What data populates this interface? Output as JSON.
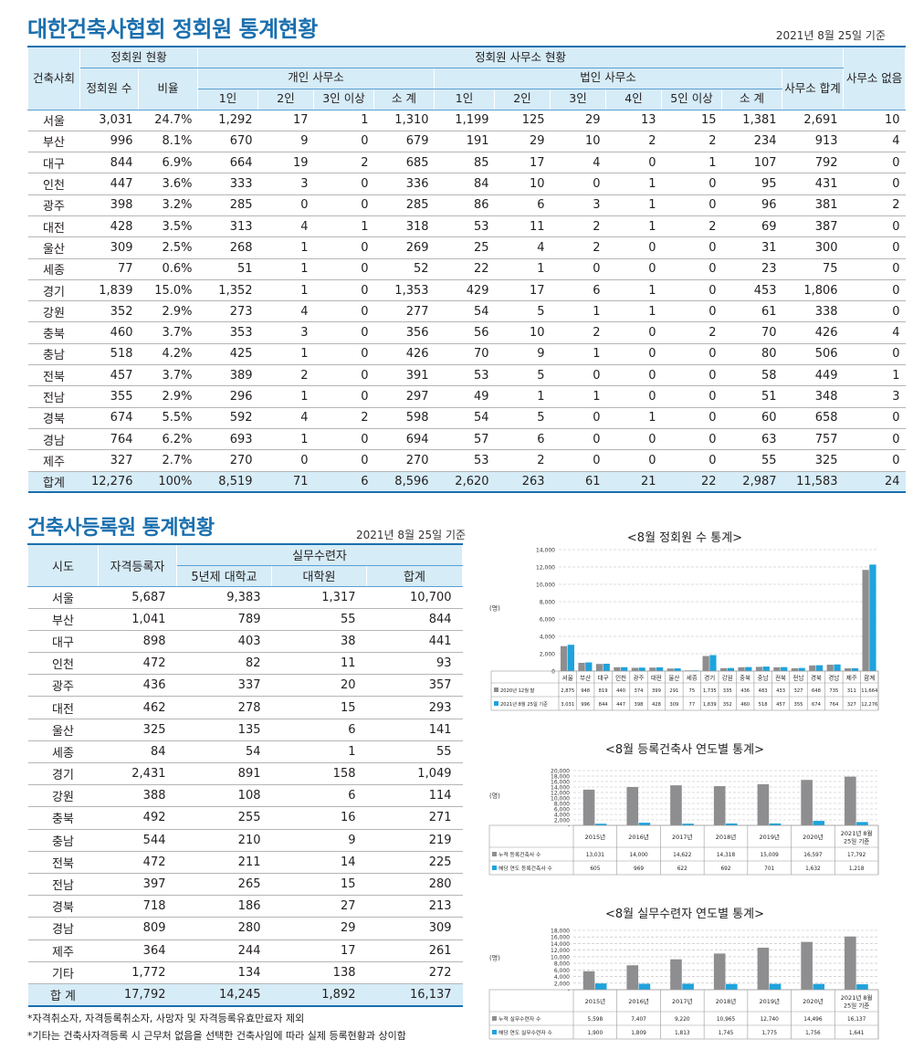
{
  "section1": {
    "title": "대한건축사협회 정회원 통계현황",
    "as_of": "2021년 8월 25일 기준",
    "headers": {
      "region": "건축사회",
      "member_status": "정회원 현황",
      "member_count": "정회원 수",
      "ratio": "비율",
      "office_status": "정회원 사무소 현황",
      "individual": "개인 사무소",
      "corporate": "법인 사무소",
      "one": "1인",
      "two": "2인",
      "three_plus": "3인 이상",
      "three": "3인",
      "four": "4인",
      "five_plus": "5인 이상",
      "subtotal": "소 계",
      "office_total": "사무소 합계",
      "no_office": "사무소 없음"
    },
    "rows": [
      [
        "서울",
        "3,031",
        "24.7%",
        "1,292",
        "17",
        "1",
        "1,310",
        "1,199",
        "125",
        "29",
        "13",
        "15",
        "1,381",
        "2,691",
        "10"
      ],
      [
        "부산",
        "996",
        "8.1%",
        "670",
        "9",
        "0",
        "679",
        "191",
        "29",
        "10",
        "2",
        "2",
        "234",
        "913",
        "4"
      ],
      [
        "대구",
        "844",
        "6.9%",
        "664",
        "19",
        "2",
        "685",
        "85",
        "17",
        "4",
        "0",
        "1",
        "107",
        "792",
        "0"
      ],
      [
        "인천",
        "447",
        "3.6%",
        "333",
        "3",
        "0",
        "336",
        "84",
        "10",
        "0",
        "1",
        "0",
        "95",
        "431",
        "0"
      ],
      [
        "광주",
        "398",
        "3.2%",
        "285",
        "0",
        "0",
        "285",
        "86",
        "6",
        "3",
        "1",
        "0",
        "96",
        "381",
        "2"
      ],
      [
        "대전",
        "428",
        "3.5%",
        "313",
        "4",
        "1",
        "318",
        "53",
        "11",
        "2",
        "1",
        "2",
        "69",
        "387",
        "0"
      ],
      [
        "울산",
        "309",
        "2.5%",
        "268",
        "1",
        "0",
        "269",
        "25",
        "4",
        "2",
        "0",
        "0",
        "31",
        "300",
        "0"
      ],
      [
        "세종",
        "77",
        "0.6%",
        "51",
        "1",
        "0",
        "52",
        "22",
        "1",
        "0",
        "0",
        "0",
        "23",
        "75",
        "0"
      ],
      [
        "경기",
        "1,839",
        "15.0%",
        "1,352",
        "1",
        "0",
        "1,353",
        "429",
        "17",
        "6",
        "1",
        "0",
        "453",
        "1,806",
        "0"
      ],
      [
        "강원",
        "352",
        "2.9%",
        "273",
        "4",
        "0",
        "277",
        "54",
        "5",
        "1",
        "1",
        "0",
        "61",
        "338",
        "0"
      ],
      [
        "충북",
        "460",
        "3.7%",
        "353",
        "3",
        "0",
        "356",
        "56",
        "10",
        "2",
        "0",
        "2",
        "70",
        "426",
        "4"
      ],
      [
        "충남",
        "518",
        "4.2%",
        "425",
        "1",
        "0",
        "426",
        "70",
        "9",
        "1",
        "0",
        "0",
        "80",
        "506",
        "0"
      ],
      [
        "전북",
        "457",
        "3.7%",
        "389",
        "2",
        "0",
        "391",
        "53",
        "5",
        "0",
        "0",
        "0",
        "58",
        "449",
        "1"
      ],
      [
        "전남",
        "355",
        "2.9%",
        "296",
        "1",
        "0",
        "297",
        "49",
        "1",
        "1",
        "0",
        "0",
        "51",
        "348",
        "3"
      ],
      [
        "경북",
        "674",
        "5.5%",
        "592",
        "4",
        "2",
        "598",
        "54",
        "5",
        "0",
        "1",
        "0",
        "60",
        "658",
        "0"
      ],
      [
        "경남",
        "764",
        "6.2%",
        "693",
        "1",
        "0",
        "694",
        "57",
        "6",
        "0",
        "0",
        "0",
        "63",
        "757",
        "0"
      ],
      [
        "제주",
        "327",
        "2.7%",
        "270",
        "0",
        "0",
        "270",
        "53",
        "2",
        "0",
        "0",
        "0",
        "55",
        "325",
        "0"
      ]
    ],
    "total": [
      "합계",
      "12,276",
      "100%",
      "8,519",
      "71",
      "6",
      "8,596",
      "2,620",
      "263",
      "61",
      "21",
      "22",
      "2,987",
      "11,583",
      "24"
    ]
  },
  "section2": {
    "title": "건축사등록원 통계현황",
    "as_of": "2021년 8월 25일 기준",
    "headers": {
      "region": "시도",
      "qualified": "자격등록자",
      "trainee": "실무수련자",
      "univ5": "5년제 대학교",
      "grad": "대학원",
      "sum": "합계"
    },
    "rows": [
      [
        "서울",
        "5,687",
        "9,383",
        "1,317",
        "10,700"
      ],
      [
        "부산",
        "1,041",
        "789",
        "55",
        "844"
      ],
      [
        "대구",
        "898",
        "403",
        "38",
        "441"
      ],
      [
        "인천",
        "472",
        "82",
        "11",
        "93"
      ],
      [
        "광주",
        "436",
        "337",
        "20",
        "357"
      ],
      [
        "대전",
        "462",
        "278",
        "15",
        "293"
      ],
      [
        "울산",
        "325",
        "135",
        "6",
        "141"
      ],
      [
        "세종",
        "84",
        "54",
        "1",
        "55"
      ],
      [
        "경기",
        "2,431",
        "891",
        "158",
        "1,049"
      ],
      [
        "강원",
        "388",
        "108",
        "6",
        "114"
      ],
      [
        "충북",
        "492",
        "255",
        "16",
        "271"
      ],
      [
        "충남",
        "544",
        "210",
        "9",
        "219"
      ],
      [
        "전북",
        "472",
        "211",
        "14",
        "225"
      ],
      [
        "전남",
        "397",
        "265",
        "15",
        "280"
      ],
      [
        "경북",
        "718",
        "186",
        "27",
        "213"
      ],
      [
        "경남",
        "809",
        "280",
        "29",
        "309"
      ],
      [
        "제주",
        "364",
        "244",
        "17",
        "261"
      ],
      [
        "기타",
        "1,772",
        "134",
        "138",
        "272"
      ]
    ],
    "total": [
      "합 계",
      "17,792",
      "14,245",
      "1,892",
      "16,137"
    ],
    "notes": [
      "*자격취소자, 자격등록취소자, 사망자 및 자격등록유효만료자 제외",
      "*기타는 건축사자격등록 시 근무처 없음을 선택한 건축사임에 따라 실제 등록현황과 상이함"
    ]
  },
  "colors": {
    "title": "#1a6fae",
    "header_bg": "#d6ecf7",
    "gray_bar": "#8e8e90",
    "blue_bar": "#1fa3dc"
  },
  "chart_data": [
    {
      "type": "bar",
      "title": "<8월 정회원 수 통계>",
      "ylabel": "(명)",
      "ylim": [
        0,
        14000
      ],
      "yticks": [
        "0",
        "2,000",
        "4,000",
        "6,000",
        "8,000",
        "10,000",
        "12,000",
        "14,000"
      ],
      "categories": [
        "서울",
        "부산",
        "대구",
        "인천",
        "광주",
        "대전",
        "울산",
        "세종",
        "경기",
        "강원",
        "충북",
        "충남",
        "전북",
        "전남",
        "경북",
        "경남",
        "제주",
        "합계"
      ],
      "series": [
        {
          "name": "2020년 12월 말",
          "values": [
            2875,
            948,
            819,
            440,
            374,
            399,
            291,
            75,
            1735,
            335,
            436,
            483,
            433,
            327,
            648,
            735,
            311,
            11664
          ],
          "labels": [
            "2,875",
            "948",
            "819",
            "440",
            "374",
            "399",
            "291",
            "75",
            "1,735",
            "335",
            "436",
            "483",
            "433",
            "327",
            "648",
            "735",
            "311",
            "11,664"
          ]
        },
        {
          "name": "2021년 8월 25일 기준",
          "values": [
            3031,
            996,
            844,
            447,
            398,
            428,
            309,
            77,
            1839,
            352,
            460,
            518,
            457,
            355,
            674,
            764,
            327,
            12276
          ],
          "labels": [
            "3,031",
            "996",
            "844",
            "447",
            "398",
            "428",
            "309",
            "77",
            "1,839",
            "352",
            "460",
            "518",
            "457",
            "355",
            "674",
            "764",
            "327",
            "12,276"
          ]
        }
      ]
    },
    {
      "type": "bar",
      "title": "<8월 등록건축사 연도별 통계>",
      "ylabel": "(명)",
      "ylim": [
        0,
        20000
      ],
      "yticks": [
        "-",
        "2,000",
        "4,000",
        "6,000",
        "8,000",
        "10,000",
        "12,000",
        "14,000",
        "16,000",
        "18,000",
        "20,000"
      ],
      "categories": [
        "2015년",
        "2016년",
        "2017년",
        "2018년",
        "2019년",
        "2020년",
        "2021년 8월 25일 기준"
      ],
      "series": [
        {
          "name": "누적 등록건축사 수",
          "values": [
            13031,
            14000,
            14622,
            14318,
            15009,
            16597,
            17792
          ],
          "labels": [
            "13,031",
            "14,000",
            "14,622",
            "14,318",
            "15,009",
            "16,597",
            "17,792"
          ]
        },
        {
          "name": "해당 연도 등록건축사 수",
          "values": [
            605,
            969,
            622,
            692,
            701,
            1632,
            1218
          ],
          "labels": [
            "605",
            "969",
            "622",
            "692",
            "701",
            "1,632",
            "1,218"
          ]
        }
      ]
    },
    {
      "type": "bar",
      "title": "<8월 실무수련자 연도별 통계>",
      "ylabel": "(명)",
      "ylim": [
        0,
        18000
      ],
      "yticks": [
        "-",
        "2,000",
        "4,000",
        "6,000",
        "8,000",
        "10,000",
        "12,000",
        "14,000",
        "16,000",
        "18,000"
      ],
      "categories": [
        "2015년",
        "2016년",
        "2017년",
        "2018년",
        "2019년",
        "2020년",
        "2021년 8월 25일 기준"
      ],
      "series": [
        {
          "name": "누적 실무수련자 수",
          "values": [
            5598,
            7407,
            9220,
            10965,
            12740,
            14496,
            16137
          ],
          "labels": [
            "5,598",
            "7,407",
            "9,220",
            "10,965",
            "12,740",
            "14,496",
            "16,137"
          ]
        },
        {
          "name": "해당 연도 실무수련자 수",
          "values": [
            1900,
            1809,
            1813,
            1745,
            1775,
            1756,
            1641
          ],
          "labels": [
            "1,900",
            "1,809",
            "1,813",
            "1,745",
            "1,775",
            "1,756",
            "1,641"
          ]
        }
      ]
    }
  ]
}
